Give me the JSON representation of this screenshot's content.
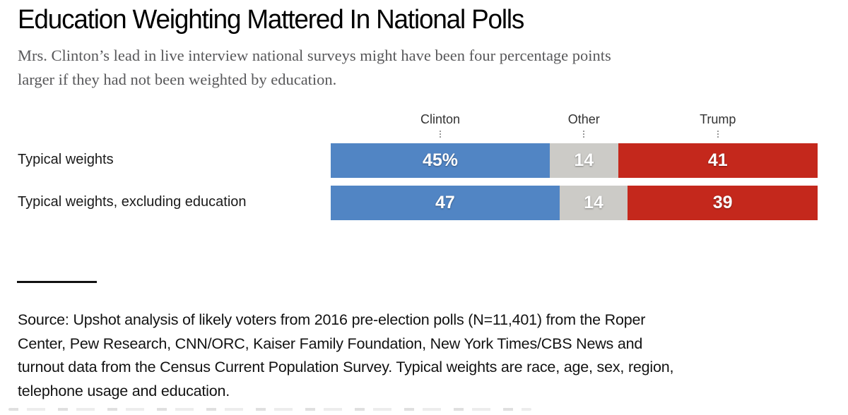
{
  "header": {
    "title": "Education Weighting Mattered In National Polls",
    "subtitle_lines": [
      "Mrs. Clinton’s lead in live interview national surveys might have been four percentage points",
      "larger if they had not been weighted by education."
    ]
  },
  "chart_data": {
    "type": "bar",
    "stacked": true,
    "orientation": "horizontal",
    "total": 100,
    "columns": [
      "Clinton",
      "Other",
      "Trump"
    ],
    "colors": [
      "#5185c4",
      "#cccbc7",
      "#c4281c"
    ],
    "value_text_color": "#ffffff",
    "rows": [
      {
        "label": "Typical weights",
        "values": [
          45,
          14,
          41
        ],
        "display": [
          "45%",
          "14",
          "41"
        ]
      },
      {
        "label": "Typical weights, excluding education",
        "values": [
          47,
          14,
          39
        ],
        "display": [
          "47",
          "14",
          "39"
        ]
      }
    ]
  },
  "source": {
    "lines": [
      "Source: Upshot analysis of likely voters from 2016 pre-election polls (N=11,401) from the Roper",
      "Center, Pew Research, CNN/ORC, Kaiser Family Foundation, New York Times/CBS News and",
      "turnout data from the Census Current Population Survey. Typical weights are race, age, sex, region,",
      "telephone usage and education."
    ]
  }
}
